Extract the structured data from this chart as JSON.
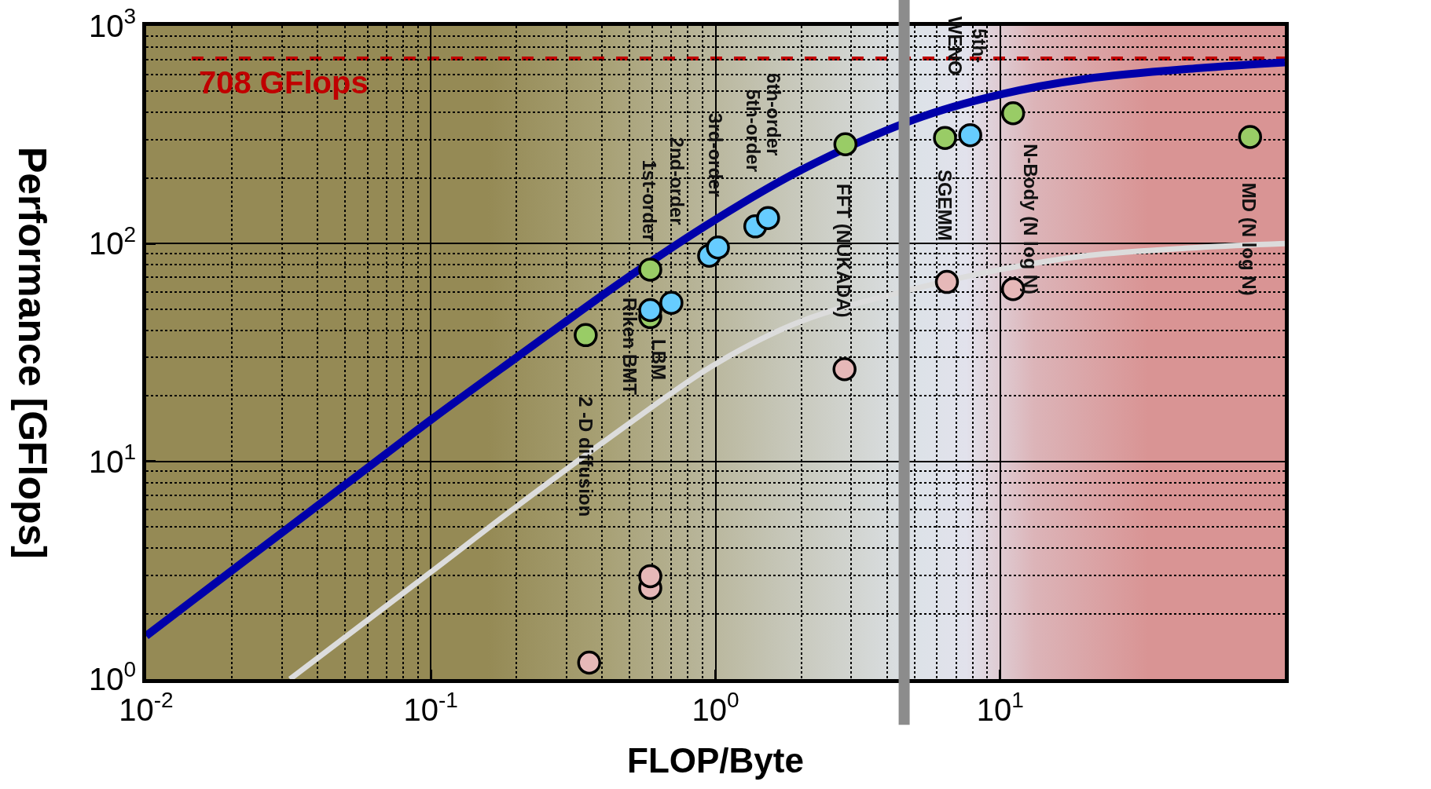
{
  "chart_data": {
    "type": "scatter",
    "xlabel": "FLOP/Byte",
    "ylabel": "Performance [GFlops]",
    "log": "xy",
    "grid": true,
    "marker": "circle",
    "xlim": [
      0.01,
      100
    ],
    "ylim": [
      1,
      1000
    ],
    "xticks": [
      {
        "value": 0.01,
        "label": "10$^{-2}$"
      },
      {
        "value": 0.1,
        "label": "10$^{-1}$"
      },
      {
        "value": 1,
        "label": "10$^{0}$"
      },
      {
        "value": 10,
        "label": "10$^{1}$"
      }
    ],
    "yticks": [
      {
        "value": 1,
        "label": "10$^{0}$"
      },
      {
        "value": 10,
        "label": "10$^{1}$"
      },
      {
        "value": 100,
        "label": "10$^{2}$"
      },
      {
        "value": 1000,
        "label": "10$^{3}$"
      }
    ],
    "series": [
      {
        "type": "line",
        "marker": "none",
        "color": "#dcdcdc",
        "x": [
          0.032,
          0.1,
          0.2,
          0.5,
          1,
          2,
          5,
          10,
          20,
          50,
          100
        ],
        "values": [
          1.0,
          3.1,
          6.2,
          15,
          28,
          44,
          62,
          76,
          88,
          96,
          100
        ]
      },
      {
        "type": "line",
        "marker": "none",
        "color": "#0000aa",
        "x": [
          0.01,
          0.02,
          0.05,
          0.1,
          0.2,
          0.5,
          1,
          2,
          5,
          10,
          20,
          50,
          100
        ],
        "values": [
          1.58,
          3.15,
          7.8,
          15.5,
          30,
          71,
          129,
          218,
          372,
          484,
          571,
          640,
          680
        ]
      },
      {
        "color": "#e6b8b8",
        "x": [
          0.36,
          0.59,
          0.59,
          2.84,
          6.5,
          11.1
        ],
        "values": [
          1.19,
          2.62,
          2.97,
          26.5,
          66.7,
          61.8
        ]
      },
      {
        "color": "#99cc66",
        "x": [
          0.35,
          0.59,
          0.59,
          2.86,
          6.4,
          11.1,
          75.5
        ],
        "values": [
          38,
          46,
          76,
          286,
          306,
          397,
          309
        ]
      },
      {
        "color": "#66ccff",
        "x": [
          0.59,
          0.7,
          0.95,
          1.02,
          1.38,
          1.53,
          7.85
        ],
        "values": [
          49.5,
          53.5,
          88,
          96,
          120,
          131,
          315
        ]
      }
    ],
    "ref_lines": [
      {
        "axis": "y",
        "value": 708,
        "label": "708 GFlops",
        "color": "#c00000",
        "line_style": "dashed"
      },
      {
        "axis": "x",
        "value": 4.6,
        "label": null,
        "color": "#8c8c8c",
        "line_style": "solid"
      }
    ],
    "annotations": [
      "2 -D diffusion",
      "Riken BMT",
      "LBM",
      "1st-order",
      "2nd-order",
      "3rd-order",
      "5th-order",
      "6th-order",
      "FFT (NUKADA)",
      "SGEMM",
      "5th-\nWENO",
      "N-Body (N log N)",
      "MD (N log N)"
    ]
  }
}
